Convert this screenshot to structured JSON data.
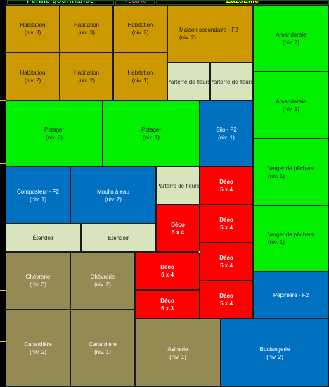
{
  "header": {
    "farm_name": "Ferme gourmande",
    "percent": "+285%",
    "user": "ZazaLille"
  },
  "colors": {
    "habitation": "#cc9900",
    "culture": "#00f000",
    "batiment": "#0070c0",
    "decor": "#d8e4bc",
    "animaux": "#948a54",
    "deco_red": "#ff0000"
  },
  "tiles": [
    {
      "name": "Habitation",
      "level": "(niv. 3)"
    },
    {
      "name": "Habitation",
      "level": "(niv. 3)"
    },
    {
      "name": "Habitation",
      "level": "(niv. 2)"
    },
    {
      "name": "Maison secondaire - F2",
      "level": "(niv. 2)"
    },
    {
      "name": "Amanderaie",
      "level": "(niv. 2)"
    },
    {
      "name": "Habitation",
      "level": "(niv. 2)"
    },
    {
      "name": "Habitation",
      "level": "(niv. 2)"
    },
    {
      "name": "Habitation",
      "level": "(niv. 1)"
    },
    {
      "name": "Parterre de fleurs",
      "level": ""
    },
    {
      "name": "Parterre de fleurs",
      "level": ""
    },
    {
      "name": "Amanderaie",
      "level": "(niv. 1)"
    },
    {
      "name": "Potager",
      "level": "(niv. 2)"
    },
    {
      "name": "Potager",
      "level": "(niv. 1)"
    },
    {
      "name": "Silo - F2",
      "level": "(niv. 1)"
    },
    {
      "name": "Verger de pêchers",
      "level": "(niv. 1)"
    },
    {
      "name": "Composteur - F2",
      "level": "(niv. 1)"
    },
    {
      "name": "Moulin à eau",
      "level": "(niv. 2)"
    },
    {
      "name": "Parterre de fleurs",
      "level": ""
    },
    {
      "name": "Déco",
      "level": "5 x 4"
    },
    {
      "name": "Étendoir",
      "level": ""
    },
    {
      "name": "Étendoir",
      "level": ""
    },
    {
      "name": "Déco",
      "level": "5 x 4"
    },
    {
      "name": "Déco",
      "level": "5 x 4"
    },
    {
      "name": "Verger de pêchers",
      "level": "(niv. 1)"
    },
    {
      "name": "Chèvrerie",
      "level": "(niv. 3)"
    },
    {
      "name": "Chèvrerie",
      "level": "(niv. 2)"
    },
    {
      "name": "Déco",
      "level": "6 x 4"
    },
    {
      "name": "Déco",
      "level": "5 x 4"
    },
    {
      "name": "Déco",
      "level": "6 x 3"
    },
    {
      "name": "Déco",
      "level": "5 x 4"
    },
    {
      "name": "Pépinière - F2",
      "level": ""
    },
    {
      "name": "Canardière",
      "level": "(niv. 2)"
    },
    {
      "name": "Canardière",
      "level": "(niv. 1)"
    },
    {
      "name": "Asinerie",
      "level": "(niv. 1)"
    },
    {
      "name": "Boulangerie",
      "level": "(niv. 2)"
    }
  ]
}
